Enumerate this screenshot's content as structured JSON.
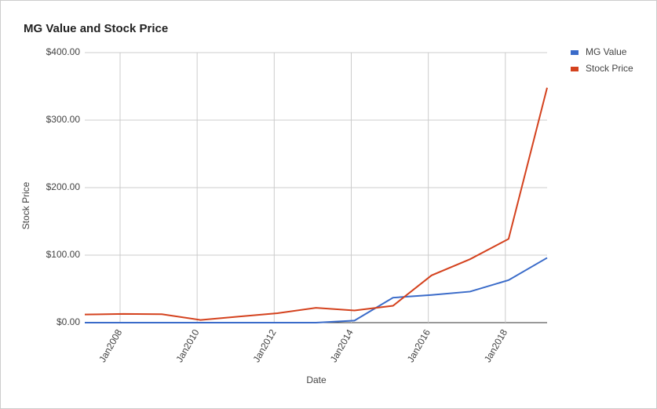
{
  "chart_data": {
    "type": "line",
    "title": "MG Value and Stock Price",
    "x_label": "Date",
    "y_label": "Stock Price",
    "x": [
      "2007-02",
      "2008-02",
      "2009-02",
      "2010-02",
      "2011-02",
      "2012-02",
      "2013-02",
      "2014-02",
      "2015-02",
      "2016-02",
      "2017-02",
      "2018-02",
      "2019-02"
    ],
    "series": [
      {
        "name": "MG Value",
        "color": "#3a6bc9",
        "values": [
          0,
          0,
          0,
          0,
          0,
          0,
          0,
          3,
          37,
          41,
          46,
          63,
          96
        ]
      },
      {
        "name": "Stock Price",
        "color": "#d4421e",
        "values": [
          12,
          13,
          12.5,
          4,
          9,
          14,
          22,
          18,
          25,
          70,
          94,
          124,
          348
        ]
      }
    ],
    "xlim": [
      "2007-02",
      "2019-02"
    ],
    "xticks": [
      {
        "value": "2008-01",
        "label": "Jan2008"
      },
      {
        "value": "2010-01",
        "label": "Jan2010"
      },
      {
        "value": "2012-01",
        "label": "Jan2012"
      },
      {
        "value": "2014-01",
        "label": "Jan2014"
      },
      {
        "value": "2016-01",
        "label": "Jan2016"
      },
      {
        "value": "2018-01",
        "label": "Jan2018"
      }
    ],
    "ylim": [
      0,
      400
    ],
    "yticks": [
      {
        "value": 0,
        "label": "$0.00"
      },
      {
        "value": 100,
        "label": "$100.00"
      },
      {
        "value": 200,
        "label": "$200.00"
      },
      {
        "value": 300,
        "label": "$300.00"
      },
      {
        "value": 400,
        "label": "$400.00"
      }
    ],
    "grid": true,
    "legend": "right"
  }
}
